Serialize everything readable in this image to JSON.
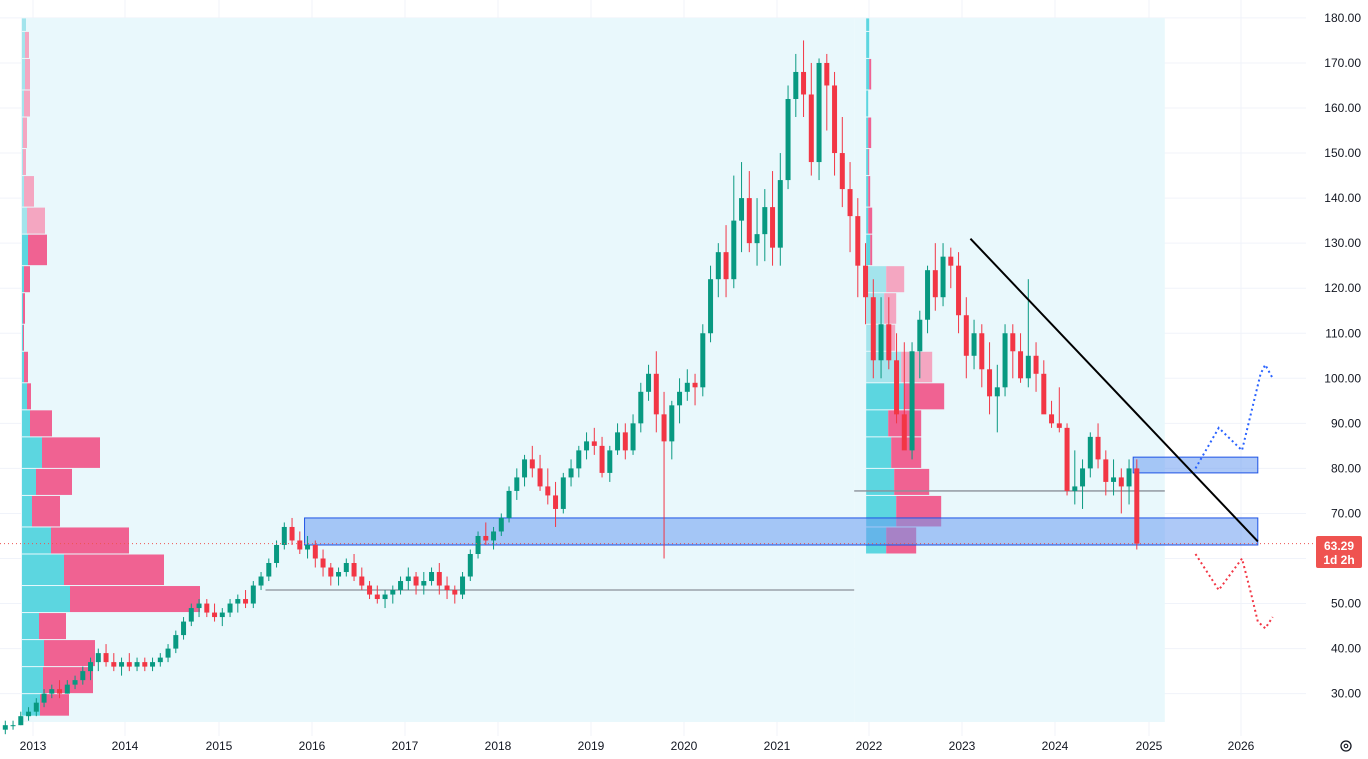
{
  "chart_data": {
    "type": "candlestick",
    "interval": "monthly",
    "y_axis": {
      "side": "right",
      "ylim": [
        22,
        180
      ],
      "ticks": [
        30,
        40,
        50,
        60,
        70,
        80,
        90,
        100,
        110,
        120,
        130,
        140,
        150,
        160,
        170,
        180
      ],
      "tick_labels": [
        "30.00",
        "40.00",
        "50.00",
        "60.00",
        "70.00",
        "80.00",
        "90.00",
        "100.00",
        "110.00",
        "120.00",
        "130.00",
        "140.00",
        "150.00",
        "160.00",
        "170.00",
        "180.00"
      ]
    },
    "x_axis": {
      "labels": [
        "2013",
        "2014",
        "2015",
        "2016",
        "2017",
        "2018",
        "2019",
        "2020",
        "2021",
        "2022",
        "2023",
        "2024",
        "2025",
        "2026"
      ],
      "label_x": [
        33,
        125,
        219,
        312,
        405,
        498,
        591,
        684,
        777,
        869,
        962,
        1055,
        1149,
        1241
      ]
    },
    "last_price": {
      "value": 63.29,
      "label": "63.29",
      "countdown": "1d 2h",
      "color": "#ef5350"
    },
    "colors": {
      "up": "#089981",
      "down": "#f23645",
      "vp_up": "#5cd6e0",
      "vp_down": "#f06292",
      "vp_up_light": "#a3e4ec",
      "vp_down_light": "#f4a6c1",
      "zone": "#6b9cf0",
      "range_bg": "#e9f8fc",
      "trendline": "#000000",
      "bull_path": "#2962ff",
      "bear_path": "#f23645"
    },
    "candles": [
      [
        22,
        24,
        21,
        23
      ],
      [
        23,
        24,
        22,
        23
      ],
      [
        23,
        26,
        23,
        25
      ],
      [
        25,
        27,
        24,
        26
      ],
      [
        26,
        29,
        25,
        28
      ],
      [
        28,
        31,
        27,
        30
      ],
      [
        30,
        32,
        29,
        31
      ],
      [
        31,
        33,
        29,
        30
      ],
      [
        30,
        33,
        30,
        32
      ],
      [
        32,
        34,
        31,
        33
      ],
      [
        33,
        36,
        32,
        35
      ],
      [
        35,
        38,
        33,
        37
      ],
      [
        37,
        40,
        35,
        39
      ],
      [
        39,
        41,
        36,
        37
      ],
      [
        37,
        39,
        35,
        36
      ],
      [
        36,
        38,
        34,
        37
      ],
      [
        37,
        39,
        35,
        36
      ],
      [
        36,
        38,
        35,
        37
      ],
      [
        37,
        38,
        35,
        36
      ],
      [
        36,
        38,
        35,
        37
      ],
      [
        37,
        39,
        36,
        38
      ],
      [
        38,
        41,
        37,
        40
      ],
      [
        40,
        44,
        39,
        43
      ],
      [
        43,
        47,
        42,
        46
      ],
      [
        46,
        50,
        45,
        49
      ],
      [
        49,
        51,
        47,
        50
      ],
      [
        50,
        51,
        47,
        48
      ],
      [
        48,
        50,
        46,
        47
      ],
      [
        47,
        49,
        45,
        48
      ],
      [
        48,
        51,
        47,
        50
      ],
      [
        50,
        52,
        48,
        51
      ],
      [
        51,
        53,
        49,
        50
      ],
      [
        50,
        55,
        49,
        54
      ],
      [
        54,
        57,
        53,
        56
      ],
      [
        56,
        60,
        55,
        59
      ],
      [
        59,
        64,
        58,
        63
      ],
      [
        63,
        68,
        62,
        67
      ],
      [
        67,
        69,
        63,
        64
      ],
      [
        64,
        66,
        61,
        62
      ],
      [
        62,
        65,
        60,
        63
      ],
      [
        63,
        64,
        58,
        60
      ],
      [
        60,
        62,
        56,
        58
      ],
      [
        58,
        59,
        54,
        56
      ],
      [
        56,
        58,
        54,
        57
      ],
      [
        57,
        60,
        56,
        59
      ],
      [
        59,
        61,
        55,
        56
      ],
      [
        56,
        58,
        53,
        54
      ],
      [
        54,
        55,
        51,
        52
      ],
      [
        52,
        54,
        50,
        51
      ],
      [
        51,
        53,
        49,
        52
      ],
      [
        52,
        54,
        50,
        53
      ],
      [
        53,
        56,
        52,
        55
      ],
      [
        55,
        58,
        53,
        56
      ],
      [
        56,
        57,
        52,
        54
      ],
      [
        54,
        57,
        52,
        55
      ],
      [
        55,
        58,
        54,
        57
      ],
      [
        57,
        59,
        52,
        54
      ],
      [
        54,
        56,
        51,
        53
      ],
      [
        53,
        54,
        50,
        52
      ],
      [
        52,
        57,
        51,
        56
      ],
      [
        56,
        62,
        55,
        61
      ],
      [
        61,
        66,
        60,
        65
      ],
      [
        65,
        68,
        63,
        64
      ],
      [
        64,
        67,
        62,
        66
      ],
      [
        66,
        70,
        65,
        69
      ],
      [
        69,
        76,
        68,
        75
      ],
      [
        75,
        80,
        73,
        78
      ],
      [
        78,
        83,
        76,
        82
      ],
      [
        82,
        85,
        78,
        80
      ],
      [
        80,
        83,
        75,
        76
      ],
      [
        76,
        80,
        72,
        74
      ],
      [
        74,
        77,
        67,
        71
      ],
      [
        71,
        79,
        70,
        78
      ],
      [
        78,
        82,
        76,
        80
      ],
      [
        80,
        85,
        78,
        84
      ],
      [
        84,
        88,
        82,
        86
      ],
      [
        86,
        89,
        83,
        85
      ],
      [
        85,
        87,
        78,
        79
      ],
      [
        79,
        85,
        77,
        84
      ],
      [
        84,
        90,
        83,
        88
      ],
      [
        88,
        90,
        82,
        84
      ],
      [
        84,
        92,
        83,
        90
      ],
      [
        90,
        99,
        88,
        97
      ],
      [
        97,
        103,
        95,
        101
      ],
      [
        101,
        106,
        88,
        92
      ],
      [
        92,
        97,
        60,
        86
      ],
      [
        86,
        95,
        82,
        94
      ],
      [
        94,
        100,
        90,
        97
      ],
      [
        97,
        102,
        95,
        99
      ],
      [
        99,
        101,
        94,
        98
      ],
      [
        98,
        112,
        96,
        110
      ],
      [
        110,
        125,
        108,
        122
      ],
      [
        122,
        130,
        118,
        128
      ],
      [
        128,
        134,
        118,
        122
      ],
      [
        122,
        145,
        120,
        135
      ],
      [
        135,
        148,
        128,
        140
      ],
      [
        140,
        146,
        128,
        130
      ],
      [
        130,
        140,
        125,
        132
      ],
      [
        132,
        142,
        126,
        138
      ],
      [
        138,
        146,
        125,
        129
      ],
      [
        129,
        150,
        125,
        144
      ],
      [
        144,
        165,
        142,
        162
      ],
      [
        162,
        172,
        158,
        168
      ],
      [
        168,
        175,
        158,
        163
      ],
      [
        163,
        170,
        145,
        148
      ],
      [
        148,
        171,
        144,
        170
      ],
      [
        170,
        172,
        155,
        165
      ],
      [
        165,
        168,
        145,
        150
      ],
      [
        150,
        158,
        138,
        142
      ],
      [
        142,
        148,
        128,
        136
      ],
      [
        136,
        140,
        118,
        125
      ],
      [
        125,
        130,
        112,
        118
      ],
      [
        118,
        122,
        100,
        104
      ],
      [
        104,
        118,
        100,
        112
      ],
      [
        112,
        118,
        102,
        104
      ],
      [
        104,
        110,
        90,
        92
      ],
      [
        92,
        108,
        85,
        84
      ],
      [
        84,
        108,
        82,
        106
      ],
      [
        106,
        115,
        100,
        113
      ],
      [
        113,
        125,
        110,
        124
      ],
      [
        124,
        130,
        115,
        118
      ],
      [
        118,
        130,
        116,
        127
      ],
      [
        127,
        129,
        120,
        125
      ],
      [
        125,
        128,
        110,
        114
      ],
      [
        114,
        118,
        100,
        105
      ],
      [
        105,
        113,
        102,
        110
      ],
      [
        110,
        112,
        98,
        102
      ],
      [
        102,
        108,
        92,
        96
      ],
      [
        96,
        103,
        88,
        98
      ],
      [
        98,
        112,
        96,
        110
      ],
      [
        110,
        112,
        100,
        106
      ],
      [
        106,
        110,
        99,
        100
      ],
      [
        100,
        122,
        98,
        105
      ],
      [
        105,
        108,
        97,
        101
      ],
      [
        101,
        104,
        93,
        92
      ],
      [
        92,
        95,
        89,
        90
      ],
      [
        90,
        98,
        88,
        89
      ],
      [
        89,
        90,
        74,
        75
      ],
      [
        75,
        84,
        72,
        76
      ],
      [
        76,
        82,
        71,
        80
      ],
      [
        80,
        88,
        78,
        87
      ],
      [
        87,
        90,
        80,
        82
      ],
      [
        82,
        84,
        74,
        77
      ],
      [
        77,
        82,
        74,
        78
      ],
      [
        78,
        80,
        70,
        76
      ],
      [
        76,
        82,
        72,
        80
      ],
      [
        80,
        82,
        62,
        63.29
      ]
    ],
    "volume_profiles": [
      {
        "name": "profile-2013-2021",
        "x_start_year": 2013,
        "x_end_year": 2021.83,
        "anchor_x_year": 2013,
        "poc": 53,
        "rows": [
          [
            177,
            180,
            4,
            0
          ],
          [
            171,
            177,
            3,
            4
          ],
          [
            164,
            171,
            3,
            5
          ],
          [
            158,
            164,
            2,
            6
          ],
          [
            151,
            158,
            1,
            4
          ],
          [
            145,
            151,
            1,
            3
          ],
          [
            138,
            145,
            2,
            10
          ],
          [
            132,
            138,
            5,
            18
          ],
          [
            125,
            132,
            6,
            19
          ],
          [
            119,
            125,
            2,
            6
          ],
          [
            112,
            119,
            1,
            2
          ],
          [
            106,
            112,
            1,
            1
          ],
          [
            99,
            106,
            2,
            4
          ],
          [
            93,
            99,
            5,
            4
          ],
          [
            87,
            93,
            8,
            22
          ],
          [
            80,
            87,
            20,
            58
          ],
          [
            74,
            80,
            14,
            36
          ],
          [
            67,
            74,
            10,
            28
          ],
          [
            61,
            67,
            29,
            78
          ],
          [
            54,
            61,
            42,
            100
          ],
          [
            48,
            54,
            48,
            130
          ],
          [
            42,
            48,
            17,
            27
          ],
          [
            36,
            42,
            22,
            51
          ],
          [
            30,
            36,
            21,
            50
          ],
          [
            25,
            30,
            18,
            29
          ]
        ]
      },
      {
        "name": "profile-2021-2025",
        "x_start_year": 2021.83,
        "x_end_year": 2025.17,
        "anchor_x_year": 2021.83,
        "poc": 75,
        "rows": [
          [
            177,
            180,
            3,
            0
          ],
          [
            171,
            177,
            3,
            0
          ],
          [
            164,
            171,
            3,
            2
          ],
          [
            158,
            164,
            2,
            0
          ],
          [
            151,
            158,
            2,
            3
          ],
          [
            145,
            151,
            2,
            1
          ],
          [
            138,
            145,
            2,
            2
          ],
          [
            132,
            138,
            2,
            4
          ],
          [
            125,
            132,
            4,
            2
          ],
          [
            119,
            125,
            20,
            18
          ],
          [
            112,
            119,
            18,
            12
          ],
          [
            106,
            112,
            20,
            9
          ],
          [
            99,
            106,
            35,
            31
          ],
          [
            93,
            99,
            38,
            40
          ],
          [
            87,
            93,
            22,
            33
          ],
          [
            80,
            87,
            25,
            30
          ],
          [
            74,
            80,
            28,
            35
          ],
          [
            67,
            74,
            30,
            45
          ],
          [
            61,
            67,
            20,
            30
          ],
          [
            61,
            63,
            4,
            0
          ]
        ]
      }
    ],
    "zones": [
      {
        "name": "support-zone-lower",
        "x0_year": 2015.92,
        "x1_year": 2026.17,
        "y_top": 69,
        "y_bottom": 63
      },
      {
        "name": "resistance-zone-upper",
        "x0_year": 2024.83,
        "x1_year": 2026.17,
        "y_top": 82.5,
        "y_bottom": 79
      }
    ],
    "poc_lines": [
      {
        "name": "poc-line-2013-2021",
        "x0_year": 2015.5,
        "x1_year": 2021.83,
        "y": 53
      },
      {
        "name": "poc-line-2021-2025",
        "x0_year": 2021.83,
        "x1_year": 2025.17,
        "y": 75
      }
    ],
    "trendline": {
      "x0_year": 2023.08,
      "y0": 131,
      "x1_year": 2026.17,
      "y1": 63.8
    },
    "projection_bull": [
      [
        2025.5,
        80
      ],
      [
        2025.75,
        89
      ],
      [
        2026.0,
        84
      ],
      [
        2026.2,
        101
      ],
      [
        2026.25,
        103
      ],
      [
        2026.33,
        100
      ]
    ],
    "projection_bear": [
      [
        2025.5,
        61
      ],
      [
        2025.75,
        53
      ],
      [
        2026.0,
        60
      ],
      [
        2026.1,
        52
      ],
      [
        2026.17,
        46
      ],
      [
        2026.25,
        44.5
      ],
      [
        2026.33,
        47
      ]
    ]
  }
}
